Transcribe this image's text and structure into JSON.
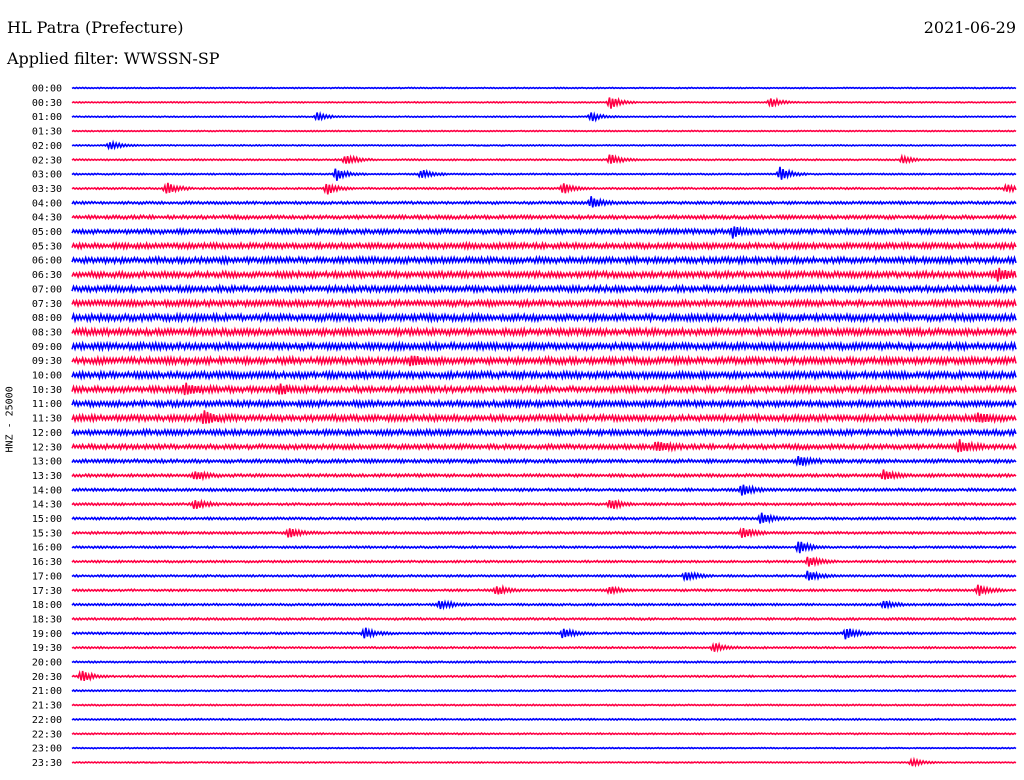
{
  "header": {
    "station": "HL Patra (Prefecture)",
    "date": "2021-06-29",
    "filter_label": "Applied filter: WWSSN-SP",
    "channel_label": "HNZ - 25000"
  },
  "colors": {
    "even_row": "#0000ff",
    "odd_row": "#ff0044"
  },
  "chart_data": {
    "type": "line",
    "title": "HL Patra (Prefecture)",
    "subtitle": "Applied filter: WWSSN-SP",
    "xlabel": "",
    "ylabel": "HNZ - 25000",
    "grid": false,
    "legend": "none",
    "tick_labels": [
      "00:00",
      "00:30",
      "01:00",
      "01:30",
      "02:00",
      "02:30",
      "03:00",
      "03:30",
      "04:00",
      "04:30",
      "05:00",
      "05:30",
      "06:00",
      "06:30",
      "07:00",
      "07:30",
      "08:00",
      "08:30",
      "09:00",
      "09:30",
      "10:00",
      "10:30",
      "11:00",
      "11:30",
      "12:00",
      "12:30",
      "13:00",
      "13:30",
      "14:00",
      "14:30",
      "15:00",
      "15:30",
      "16:00",
      "16:30",
      "17:00",
      "17:30",
      "18:00",
      "18:30",
      "19:00",
      "19:30",
      "20:00",
      "20:30",
      "21:00",
      "21:30",
      "22:00",
      "22:30",
      "23:00",
      "23:30"
    ],
    "noise_levels": [
      0.4,
      0.4,
      0.4,
      0.4,
      0.4,
      0.5,
      0.5,
      0.6,
      0.9,
      1.2,
      1.6,
      1.8,
      2.0,
      2.0,
      2.0,
      2.0,
      2.2,
      2.2,
      2.2,
      2.2,
      2.2,
      2.0,
      2.0,
      2.0,
      1.8,
      1.6,
      1.2,
      1.0,
      0.9,
      0.8,
      0.8,
      0.8,
      0.7,
      0.7,
      0.7,
      0.7,
      0.7,
      0.7,
      0.7,
      0.6,
      0.6,
      0.6,
      0.5,
      0.5,
      0.5,
      0.5,
      0.4,
      0.4
    ],
    "events": [
      {
        "row": 1,
        "t": 0.57,
        "amp": 7
      },
      {
        "row": 1,
        "t": 0.74,
        "amp": 5
      },
      {
        "row": 2,
        "t": 0.26,
        "amp": 4
      },
      {
        "row": 2,
        "t": 0.55,
        "amp": 5
      },
      {
        "row": 4,
        "t": 0.04,
        "amp": 5
      },
      {
        "row": 5,
        "t": 0.29,
        "amp": 6
      },
      {
        "row": 5,
        "t": 0.57,
        "amp": 6
      },
      {
        "row": 5,
        "t": 0.88,
        "amp": 4
      },
      {
        "row": 6,
        "t": 0.28,
        "amp": 7
      },
      {
        "row": 6,
        "t": 0.37,
        "amp": 5
      },
      {
        "row": 6,
        "t": 0.75,
        "amp": 8
      },
      {
        "row": 7,
        "t": 0.1,
        "amp": 7
      },
      {
        "row": 7,
        "t": 0.27,
        "amp": 6
      },
      {
        "row": 7,
        "t": 0.52,
        "amp": 6
      },
      {
        "row": 7,
        "t": 0.99,
        "amp": 4
      },
      {
        "row": 8,
        "t": 0.55,
        "amp": 6
      },
      {
        "row": 10,
        "t": 0.7,
        "amp": 5
      },
      {
        "row": 13,
        "t": 0.98,
        "amp": 6
      },
      {
        "row": 19,
        "t": 0.36,
        "amp": 6
      },
      {
        "row": 21,
        "t": 0.12,
        "amp": 6
      },
      {
        "row": 21,
        "t": 0.22,
        "amp": 5
      },
      {
        "row": 23,
        "t": 0.14,
        "amp": 7
      },
      {
        "row": 23,
        "t": 0.96,
        "amp": 5
      },
      {
        "row": 25,
        "t": 0.62,
        "amp": 6
      },
      {
        "row": 25,
        "t": 0.94,
        "amp": 6
      },
      {
        "row": 26,
        "t": 0.77,
        "amp": 5
      },
      {
        "row": 27,
        "t": 0.13,
        "amp": 5
      },
      {
        "row": 27,
        "t": 0.86,
        "amp": 6
      },
      {
        "row": 28,
        "t": 0.71,
        "amp": 7
      },
      {
        "row": 29,
        "t": 0.13,
        "amp": 5
      },
      {
        "row": 29,
        "t": 0.57,
        "amp": 6
      },
      {
        "row": 30,
        "t": 0.73,
        "amp": 6
      },
      {
        "row": 31,
        "t": 0.23,
        "amp": 6
      },
      {
        "row": 31,
        "t": 0.71,
        "amp": 7
      },
      {
        "row": 32,
        "t": 0.77,
        "amp": 7
      },
      {
        "row": 33,
        "t": 0.78,
        "amp": 6
      },
      {
        "row": 34,
        "t": 0.65,
        "amp": 5
      },
      {
        "row": 34,
        "t": 0.78,
        "amp": 6
      },
      {
        "row": 35,
        "t": 0.45,
        "amp": 5
      },
      {
        "row": 35,
        "t": 0.57,
        "amp": 4
      },
      {
        "row": 35,
        "t": 0.96,
        "amp": 6
      },
      {
        "row": 36,
        "t": 0.39,
        "amp": 5
      },
      {
        "row": 36,
        "t": 0.86,
        "amp": 4
      },
      {
        "row": 38,
        "t": 0.31,
        "amp": 6
      },
      {
        "row": 38,
        "t": 0.52,
        "amp": 5
      },
      {
        "row": 38,
        "t": 0.82,
        "amp": 7
      },
      {
        "row": 39,
        "t": 0.68,
        "amp": 5
      },
      {
        "row": 41,
        "t": 0.01,
        "amp": 6
      },
      {
        "row": 47,
        "t": 0.89,
        "amp": 4
      }
    ]
  }
}
